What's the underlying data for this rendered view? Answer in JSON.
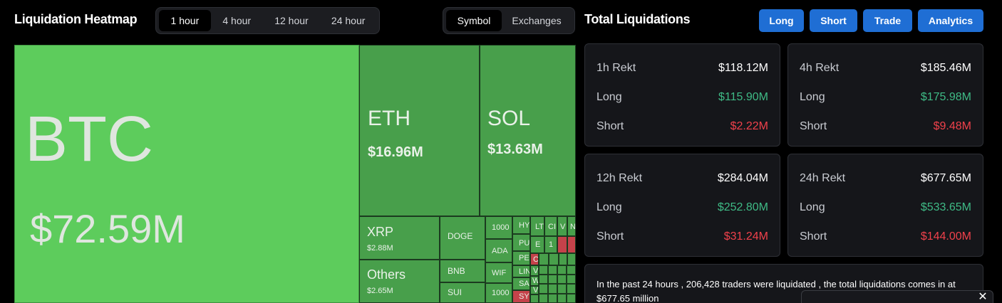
{
  "heatmap": {
    "title": "Liquidation Heatmap",
    "time_tabs": [
      "1 hour",
      "4 hour",
      "12 hour",
      "24 hour"
    ],
    "active_time_tab": "1 hour",
    "view_tabs": [
      "Symbol",
      "Exchanges"
    ],
    "active_view_tab": "Symbol",
    "tiles": {
      "btc": {
        "symbol": "BTC",
        "amount": "$72.59M"
      },
      "eth": {
        "symbol": "ETH",
        "amount": "$16.96M"
      },
      "sol": {
        "symbol": "SOL",
        "amount": "$13.63M"
      },
      "xrp": {
        "symbol": "XRP",
        "amount": "$2.88M"
      },
      "others": {
        "symbol": "Others",
        "amount": "$2.65M"
      },
      "doge": {
        "symbol": "DOGE"
      },
      "bnb": {
        "symbol": "BNB"
      },
      "sui": {
        "symbol": "SUI"
      },
      "c1000a": {
        "symbol": "1000"
      },
      "ada": {
        "symbol": "ADA"
      },
      "wif": {
        "symbol": "WIF"
      },
      "c1000b": {
        "symbol": "1000"
      },
      "hy": {
        "symbol": "HY"
      },
      "pu": {
        "symbol": "PU"
      },
      "pe": {
        "symbol": "PE"
      },
      "li": {
        "symbol": "LIN"
      },
      "sa": {
        "symbol": "SA"
      },
      "sy": {
        "symbol": "SY"
      },
      "lt": {
        "symbol": "LT"
      },
      "ci": {
        "symbol": "CI"
      },
      "v1": {
        "symbol": "V"
      },
      "n": {
        "symbol": "N"
      },
      "one": {
        "symbol": "1"
      },
      "e": {
        "symbol": "E"
      },
      "c": {
        "symbol": "C"
      },
      "w1": {
        "symbol": "V"
      },
      "w2": {
        "symbol": "W"
      },
      "w3": {
        "symbol": "V"
      }
    }
  },
  "totals": {
    "title": "Total Liquidations",
    "buttons": [
      "Long",
      "Short",
      "Trade",
      "Analytics"
    ],
    "cards": [
      {
        "period": "1h Rekt",
        "total": "$118.12M",
        "long_label": "Long",
        "long": "$115.90M",
        "short_label": "Short",
        "short": "$2.22M"
      },
      {
        "period": "4h Rekt",
        "total": "$185.46M",
        "long_label": "Long",
        "long": "$175.98M",
        "short_label": "Short",
        "short": "$9.48M"
      },
      {
        "period": "12h Rekt",
        "total": "$284.04M",
        "long_label": "Long",
        "long": "$252.80M",
        "short_label": "Short",
        "short": "$31.24M"
      },
      {
        "period": "24h Rekt",
        "total": "$677.65M",
        "long_label": "Long",
        "long": "$533.65M",
        "short_label": "Short",
        "short": "$144.00M"
      }
    ],
    "summary": "In the past 24 hours , 206,428 traders were liquidated , the total liquidations comes in at $677.65 million",
    "popup_close": "✕"
  },
  "colors": {
    "long_green": "#3fbb86",
    "short_red": "#f0414b",
    "heat_bright_green": "#5dcc5c",
    "heat_green": "#489f4b",
    "heat_red": "#c5424a",
    "accent_blue": "#1f6ed4"
  }
}
